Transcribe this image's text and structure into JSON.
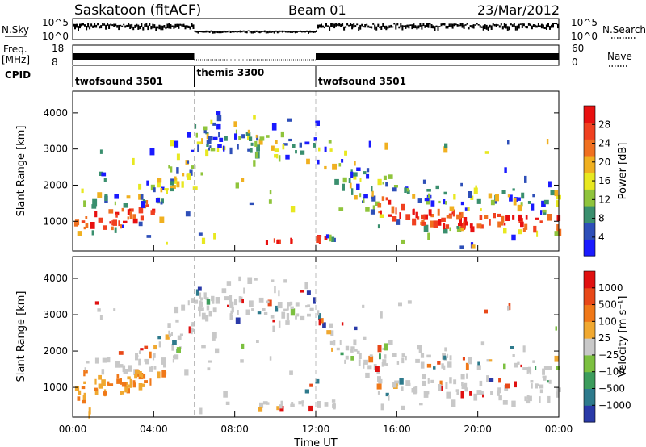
{
  "header": {
    "station": "Saskatoon (fitACF)",
    "beam": "Beam 01",
    "date": "23/Mar/2012"
  },
  "nsky_strip": {
    "left_label": "N.Sky",
    "right_label": "N.Search",
    "ticks": [
      "10^5",
      "10^0"
    ],
    "right_ticks": [
      "10^5",
      "10^0"
    ]
  },
  "freq_strip": {
    "left_label_1": "Freq.",
    "left_label_2": "[MHz]",
    "ticks": [
      "18",
      "8"
    ],
    "right_ticks": [
      "60",
      "0"
    ],
    "right_label": "Nave"
  },
  "cpid_strip": {
    "label": "CPID",
    "segments": [
      {
        "name": "twofsound 3501",
        "start": 0,
        "end": 6
      },
      {
        "name": "themis 3300",
        "start": 6,
        "end": 12
      },
      {
        "name": "twofsound 3501",
        "start": 12,
        "end": 24
      }
    ]
  },
  "chart_data": [
    {
      "type": "heatmap",
      "panel": "power",
      "ylabel": "Slant Range [km]",
      "ylim": [
        180,
        4600
      ],
      "xlim": [
        0,
        24
      ],
      "yticks": [
        "1000",
        "2000",
        "3000",
        "4000"
      ],
      "colorbar": {
        "label": "Power [dB]",
        "ticks": [
          "4",
          "8",
          "12",
          "16",
          "20",
          "24",
          "28"
        ],
        "colors": [
          "#1a1aff",
          "#2e4fb8",
          "#3a8f6e",
          "#8fc43c",
          "#e8e820",
          "#f0b020",
          "#f07020",
          "#f04020",
          "#e81010"
        ]
      },
      "scatter_bands": [
        {
          "desc": "main band",
          "x": [
            0,
            2,
            4,
            6,
            8,
            10,
            12,
            14,
            16,
            18,
            20,
            22,
            24
          ],
          "range": [
            1000,
            1100,
            1400,
            2900,
            3200,
            3100,
            3000,
            1800,
            1300,
            1150,
            1100,
            1050,
            1000
          ],
          "power": [
            26,
            20,
            14,
            14,
            12,
            10,
            12,
            16,
            22,
            26,
            26,
            24,
            22
          ]
        },
        {
          "desc": "near range",
          "x": [
            9.5,
            10.5,
            11.5,
            12.5
          ],
          "range": [
            500,
            550,
            580,
            560
          ],
          "power": [
            28,
            28,
            26,
            22
          ]
        }
      ]
    },
    {
      "type": "heatmap",
      "panel": "velocity",
      "ylabel": "Slant Range [km]",
      "xlabel": "Time UT",
      "ylim": [
        180,
        4600
      ],
      "xlim": [
        0,
        24
      ],
      "yticks": [
        "1000",
        "2000",
        "3000",
        "4000"
      ],
      "xticks": [
        "00:00",
        "04:00",
        "08:00",
        "12:00",
        "16:00",
        "20:00",
        "00:00"
      ],
      "colorbar": {
        "label": "Velocity [m s⁻¹]",
        "ticks": [
          "1000",
          "500",
          "100",
          "25",
          "−25",
          "−100",
          "−500",
          "−1000"
        ],
        "colors": [
          "#2a3aa8",
          "#2e7a8c",
          "#3c9c5c",
          "#7cc040",
          "#c8c8c8",
          "#f0a830",
          "#f07818",
          "#e84818",
          "#e01010"
        ]
      }
    }
  ]
}
